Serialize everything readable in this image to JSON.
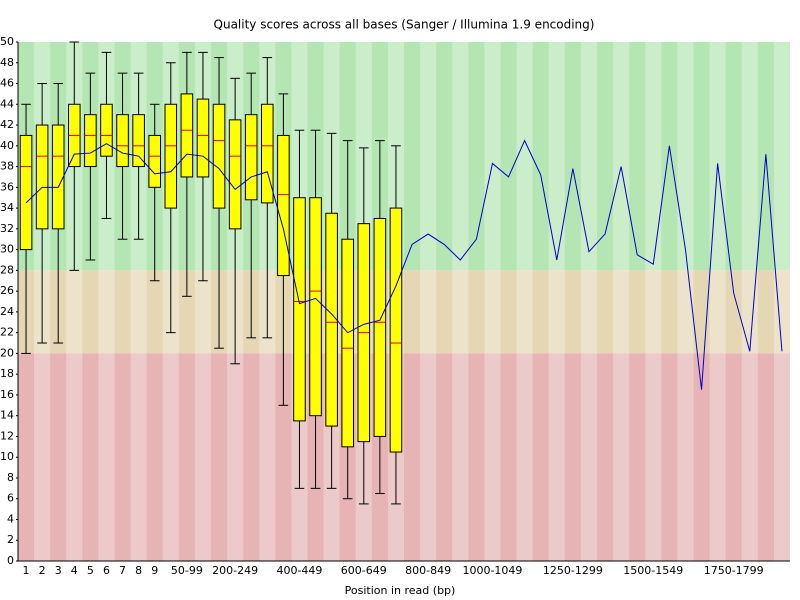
{
  "chart_data": {
    "type": "boxplot",
    "title": "Quality scores across all bases (Sanger / Illumina 1.9 encoding)",
    "x_label": "Position in read (bp)",
    "categories": [
      "1",
      "2",
      "3",
      "4",
      "5",
      "6",
      "7",
      "8",
      "9",
      null,
      "50-99",
      null,
      null,
      "200-249",
      null,
      null,
      null,
      "400-449",
      null,
      null,
      null,
      "600-649",
      null,
      null,
      null,
      "800-849",
      null,
      null,
      null,
      "1000-1049",
      null,
      null,
      null,
      null,
      "1250-1299",
      null,
      null,
      null,
      null,
      "1500-1549",
      null,
      null,
      null,
      null,
      "1750-1799",
      null,
      null,
      null
    ],
    "median": [
      38,
      39,
      39,
      41,
      41,
      41,
      40,
      40,
      39,
      40,
      41.5,
      41,
      40.5,
      39,
      40,
      40,
      35.3,
      25,
      26,
      23,
      20.5,
      22,
      23,
      21,
      null,
      null,
      null,
      null,
      null,
      null,
      null,
      null,
      null,
      null,
      null,
      null,
      null,
      null,
      null,
      null,
      null,
      null,
      null,
      null,
      null,
      null,
      null,
      null
    ],
    "q1": [
      30,
      32,
      32,
      38,
      38,
      39,
      38,
      38,
      36,
      34,
      37,
      37,
      34,
      32,
      34.8,
      34.5,
      27.5,
      13.5,
      14,
      13,
      11,
      11.5,
      12,
      10.5,
      null,
      null,
      null,
      null,
      null,
      null,
      null,
      null,
      null,
      null,
      null,
      null,
      null,
      null,
      null,
      null,
      null,
      null,
      null,
      null,
      null,
      null,
      null,
      null
    ],
    "q3": [
      41,
      42,
      42,
      44,
      43,
      44,
      43,
      43,
      41,
      44,
      45,
      44.5,
      44,
      42.5,
      43,
      44,
      41,
      35,
      35,
      33.5,
      31,
      32.5,
      33,
      34,
      null,
      null,
      null,
      null,
      null,
      null,
      null,
      null,
      null,
      null,
      null,
      null,
      null,
      null,
      null,
      null,
      null,
      null,
      null,
      null,
      null,
      null,
      null,
      null
    ],
    "whisker_low": [
      20,
      21,
      21,
      28,
      29,
      33,
      31,
      31,
      27,
      22,
      25.5,
      27,
      20.5,
      19,
      21.5,
      21.5,
      15,
      7,
      7,
      7,
      6,
      5.5,
      6.5,
      5.5,
      null,
      null,
      null,
      null,
      null,
      null,
      null,
      null,
      null,
      null,
      null,
      null,
      null,
      null,
      null,
      null,
      null,
      null,
      null,
      null,
      null,
      null,
      null,
      null
    ],
    "whisker_high": [
      44,
      46,
      46,
      50,
      47,
      49,
      47,
      47,
      44,
      48,
      49,
      49,
      48.5,
      46.5,
      47,
      48.5,
      45,
      41.5,
      41.5,
      41.2,
      40.5,
      39.8,
      40.5,
      40,
      null,
      null,
      null,
      null,
      null,
      null,
      null,
      null,
      null,
      null,
      null,
      null,
      null,
      null,
      null,
      null,
      null,
      null,
      null,
      null,
      null,
      null,
      null,
      null
    ],
    "mean": [
      34.5,
      36,
      36,
      39.2,
      39.3,
      40.2,
      39.3,
      39,
      37.3,
      37.5,
      39.2,
      39,
      37.8,
      35.8,
      37,
      37.5,
      32,
      24.8,
      25.3,
      23.8,
      22,
      22.8,
      23.2,
      26.5,
      30.5,
      31.5,
      30.5,
      29,
      31,
      38.3,
      37,
      40.5,
      37.2,
      29,
      37.8,
      29.8,
      31.5,
      38,
      29.5,
      28.6,
      40,
      30,
      16.5,
      38.3,
      25.8,
      20.2,
      39.2,
      20.2
    ],
    "box_color": "#ffff00",
    "median_color": "#e00000",
    "mean_color": "#0000cc",
    "zones": [
      {
        "from": 28,
        "to": 50,
        "color": "#b4e6b4"
      },
      {
        "from": 20,
        "to": 28,
        "color": "#e6d7b4"
      },
      {
        "from": 0,
        "to": 20,
        "color": "#e6b4b4"
      }
    ],
    "ylim": [
      0,
      50
    ],
    "yticks": [
      0,
      2,
      4,
      6,
      8,
      10,
      12,
      14,
      16,
      18,
      20,
      22,
      24,
      26,
      28,
      30,
      32,
      34,
      36,
      38,
      40,
      42,
      44,
      46,
      48,
      50
    ]
  }
}
